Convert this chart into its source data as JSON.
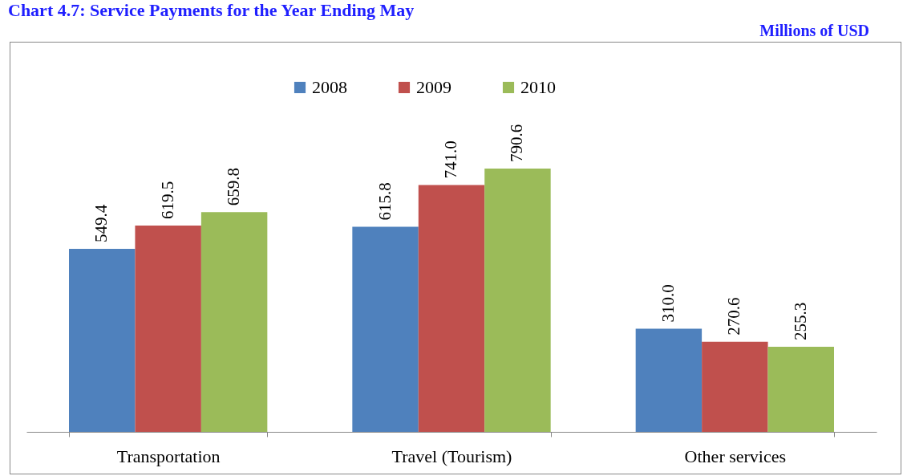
{
  "chart_data": {
    "type": "bar",
    "title": "Chart 4.7: Service Payments for the Year Ending May",
    "subtitle": "Millions of USD",
    "categories": [
      "Transportation",
      "Travel (Tourism)",
      "Other services"
    ],
    "series": [
      {
        "name": "2008",
        "color": "#4f81bd",
        "values": [
          549.4,
          615.8,
          310.0
        ],
        "value_labels": [
          "549.4",
          "615.8",
          "310.0"
        ]
      },
      {
        "name": "2009",
        "color": "#c0504d",
        "values": [
          619.5,
          741.0,
          270.6
        ],
        "value_labels": [
          "619.5",
          "741.0",
          "270.6"
        ]
      },
      {
        "name": "2010",
        "color": "#9bbb59",
        "values": [
          659.8,
          790.6,
          255.3
        ],
        "value_labels": [
          "659.8",
          "790.6",
          "255.3"
        ]
      }
    ],
    "legend": "top",
    "grid": false
  }
}
